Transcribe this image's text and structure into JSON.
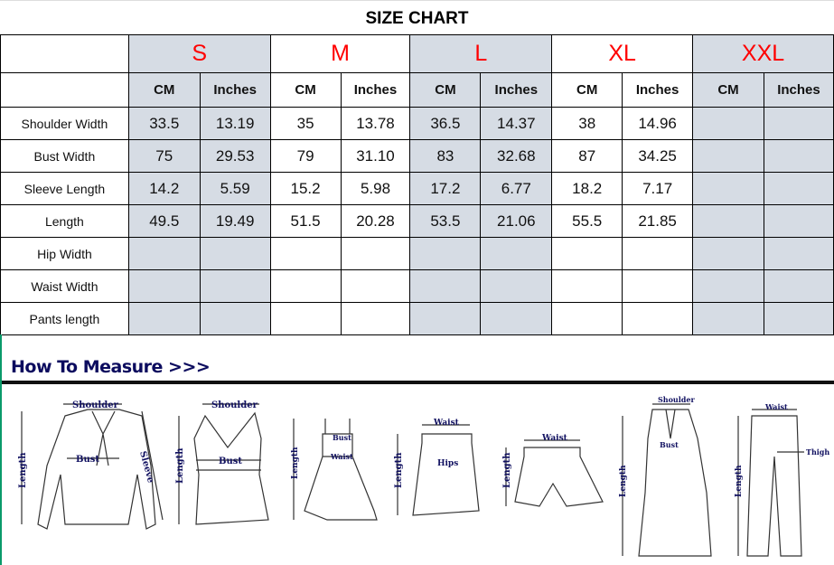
{
  "title": "SIZE CHART",
  "sizes": [
    "S",
    "M",
    "L",
    "XL",
    "XXL"
  ],
  "units": [
    "CM",
    "Inches"
  ],
  "rows": [
    {
      "label": "Shoulder Width",
      "values": [
        "33.5",
        "13.19",
        "35",
        "13.78",
        "36.5",
        "14.37",
        "38",
        "14.96",
        "",
        ""
      ]
    },
    {
      "label": "Bust Width",
      "values": [
        "75",
        "29.53",
        "79",
        "31.10",
        "83",
        "32.68",
        "87",
        "34.25",
        "",
        ""
      ]
    },
    {
      "label": "Sleeve Length",
      "values": [
        "14.2",
        "5.59",
        "15.2",
        "5.98",
        "17.2",
        "6.77",
        "18.2",
        "7.17",
        "",
        ""
      ]
    },
    {
      "label": "Length",
      "values": [
        "49.5",
        "19.49",
        "51.5",
        "20.28",
        "53.5",
        "21.06",
        "55.5",
        "21.85",
        "",
        ""
      ]
    },
    {
      "label": "Hip Width",
      "values": [
        "",
        "",
        "",
        "",
        "",
        "",
        "",
        "",
        "",
        ""
      ]
    },
    {
      "label": "Waist Width",
      "values": [
        "",
        "",
        "",
        "",
        "",
        "",
        "",
        "",
        "",
        ""
      ]
    },
    {
      "label": "Pants length",
      "values": [
        "",
        "",
        "",
        "",
        "",
        "",
        "",
        "",
        "",
        ""
      ]
    }
  ],
  "colors": {
    "size_label": "#ff0000",
    "shaded": "#d6dce4",
    "measure_title": "#0b0b5e"
  },
  "measure": {
    "title": "How To Measure >>>",
    "labels": {
      "shoulder": "Shoulder",
      "bust": "Bust",
      "sleeve": "Sleeve",
      "length": "Length",
      "waist": "Waist",
      "hips": "Hips",
      "thigh": "Thigh"
    }
  }
}
